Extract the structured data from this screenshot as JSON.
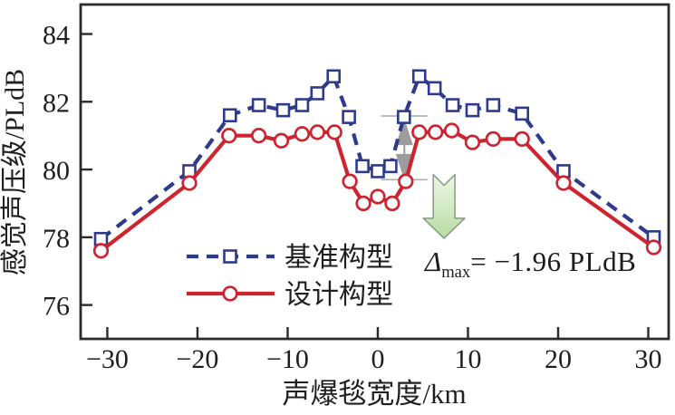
{
  "chart_data": {
    "type": "line",
    "title": "",
    "xlabel": "声爆毯宽度/km",
    "ylabel": "感觉声压级/PLdB",
    "xlim": [
      -32.96,
      32.26
    ],
    "ylim": [
      75.0,
      84.87
    ],
    "xticks": [
      -30,
      -20,
      -10,
      0,
      10,
      20,
      30
    ],
    "yticks": [
      76,
      78,
      80,
      82,
      84
    ],
    "grid": false,
    "legend_position": "lower-left-inside",
    "axis_color": "#2b2b2b",
    "tick_label_color": "#1f1f1f",
    "series": [
      {
        "key": "baseline",
        "name": "基准构型",
        "color": "#2e3a8e",
        "line_style": "dashed",
        "marker": "square",
        "x": [
          -30.7,
          -20.9,
          -16.4,
          -13.2,
          -10.5,
          -8.4,
          -6.7,
          -4.9,
          -3.2,
          -1.7,
          0,
          1.4,
          2.9,
          4.6,
          6.3,
          8.3,
          10.5,
          12.8,
          16.0,
          20.6,
          30.6
        ],
        "y": [
          77.95,
          79.95,
          81.6,
          81.9,
          81.75,
          81.9,
          82.25,
          82.75,
          81.55,
          80.1,
          79.95,
          80.1,
          81.55,
          82.75,
          82.4,
          81.9,
          81.75,
          81.9,
          81.65,
          79.95,
          78.0
        ]
      },
      {
        "key": "design",
        "name": "设计构型",
        "color": "#ce2430",
        "line_style": "solid",
        "marker": "circle",
        "x": [
          -30.7,
          -20.9,
          -16.5,
          -13.2,
          -10.7,
          -8.4,
          -6.7,
          -4.8,
          -3.1,
          -1.6,
          0,
          1.6,
          3.1,
          4.6,
          6.4,
          8.2,
          10.5,
          12.8,
          16.0,
          20.6,
          30.6
        ],
        "y": [
          77.6,
          79.6,
          81.0,
          81.0,
          80.85,
          81.05,
          81.1,
          81.1,
          79.65,
          79.0,
          79.2,
          79.0,
          79.65,
          81.1,
          81.1,
          81.15,
          80.8,
          80.9,
          80.9,
          79.6,
          77.7
        ]
      }
    ],
    "annotation": {
      "symbol": "Δ",
      "subscript": "max",
      "value": "= −1.96 PLdB",
      "delta_guides": {
        "color": "#b3b3b3",
        "arrow_color": "#9c9c9c",
        "y_top": 81.58,
        "y_bottom": 79.7,
        "guide_x1": 0.35,
        "guide_x2": 5.5,
        "arrow_x": 2.95,
        "arrow_y1": 81.5,
        "arrow_y2": 79.68,
        "head_len_db": 0.78,
        "head_half_km": 0.95
      },
      "down_arrow": {
        "x_center": 7.35,
        "y_top": 79.85,
        "y_notch": 79.53,
        "y_head": 78.56,
        "y_tip": 77.97,
        "shaft_half_km": 1.2,
        "head_half_km": 2.3,
        "fill_light": "#ecf6e3",
        "fill_dark": "#bedfa6",
        "stroke": "#8ba08b"
      }
    }
  }
}
